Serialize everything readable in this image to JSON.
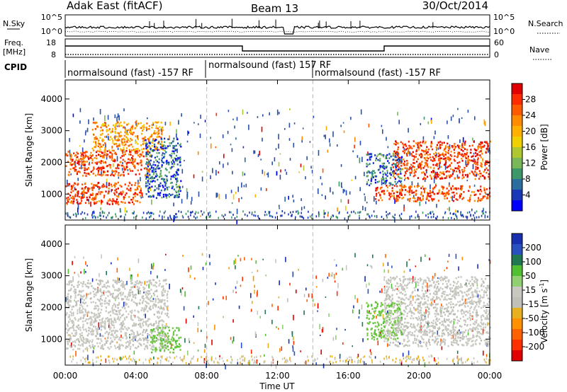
{
  "header": {
    "station": "Adak East (fitACF)",
    "beam": "Beam 13",
    "date": "30/Oct/2014"
  },
  "panels": {
    "nsky": {
      "label": "N.Sky",
      "right_label": "N.Search",
      "ticks": [
        "10^5",
        "10^0"
      ],
      "right_ticks": [
        "10^5",
        "10^0"
      ]
    },
    "freq": {
      "label_top": "Freq.",
      "label_unit": "[MHz]",
      "ticks": [
        "18",
        "8"
      ],
      "right_label": "Nave",
      "right_ticks": [
        "60",
        "0"
      ]
    },
    "cpid": {
      "label": "CPID",
      "segments": [
        {
          "text": "normalsound (fast) -157 RF",
          "start_hour": 0
        },
        {
          "text": "normalsound (fast) 157 RF",
          "start_hour": 8
        },
        {
          "text": "normalsound (fast) -157 RF",
          "start_hour": 14
        }
      ]
    }
  },
  "colorbars": {
    "power": {
      "title": "Power [dB]",
      "ticks": [
        "28",
        "24",
        "20",
        "16",
        "12",
        "8",
        "4"
      ],
      "colors": [
        "#e00000",
        "#ff2a00",
        "#ff5a00",
        "#ff8c00",
        "#ffb000",
        "#f0d000",
        "#b0c830",
        "#78b858",
        "#3c9868",
        "#2a6ea0",
        "#1838b8",
        "#0000ff"
      ]
    },
    "velocity": {
      "title": "Velocity [m s",
      "title_sup": "-1",
      "title_end": "]",
      "ticks": [
        "200",
        "100",
        "50",
        "15",
        "-15",
        "-50",
        "-100",
        "-200"
      ],
      "colors": [
        "#1830b0",
        "#2850c0",
        "#207850",
        "#50c030",
        "#90d070",
        "#c8c8c0",
        "#c0c0b8",
        "#e8b020",
        "#ff9000",
        "#ff6000",
        "#ff3000",
        "#e00000"
      ]
    }
  },
  "chart_data": [
    {
      "type": "heatmap",
      "name": "Power",
      "ylabel": "Slant Range [km]",
      "yticks": [
        1000,
        2000,
        3000,
        4000
      ],
      "xticks": [
        "00:00",
        "04:00",
        "08:00",
        "12:00",
        "16:00",
        "20:00",
        "00:00"
      ],
      "xlim_hours": [
        0,
        24
      ],
      "ylim_km": [
        180,
        4600
      ],
      "regions": [
        {
          "hour_start": 0.0,
          "hour_end": 4.3,
          "range_km": [
            700,
            1400
          ],
          "level": "high"
        },
        {
          "hour_start": 0.0,
          "hour_end": 4.8,
          "range_km": [
            1600,
            2400
          ],
          "level": "high"
        },
        {
          "hour_start": 1.5,
          "hour_end": 5.5,
          "range_km": [
            2400,
            3300
          ],
          "level": "mid"
        },
        {
          "hour_start": 4.5,
          "hour_end": 6.5,
          "range_km": [
            900,
            2800
          ],
          "level": "low"
        },
        {
          "hour_start": 17.5,
          "hour_end": 24.0,
          "range_km": [
            800,
            1300
          ],
          "level": "high"
        },
        {
          "hour_start": 18.5,
          "hour_end": 24.0,
          "range_km": [
            1500,
            2700
          ],
          "level": "high"
        },
        {
          "hour_start": 17.0,
          "hour_end": 19.0,
          "range_km": [
            1300,
            2300
          ],
          "level": "low"
        }
      ]
    },
    {
      "type": "heatmap",
      "name": "Velocity",
      "ylabel": "Slant Range [km]",
      "yticks": [
        1000,
        2000,
        3000,
        4000
      ],
      "xticks": [
        "00:00",
        "04:00",
        "08:00",
        "12:00",
        "16:00",
        "20:00",
        "00:00"
      ],
      "xlabel": "Time UT",
      "xlim_hours": [
        0,
        24
      ],
      "ylim_km": [
        180,
        4600
      ],
      "regions": [
        {
          "hour_start": 0.0,
          "hour_end": 5.8,
          "range_km": [
            700,
            2900
          ],
          "level": "ground"
        },
        {
          "hour_start": 4.8,
          "hour_end": 6.5,
          "range_km": [
            600,
            1400
          ],
          "level": "slow"
        },
        {
          "hour_start": 17.0,
          "hour_end": 19.0,
          "range_km": [
            1000,
            2200
          ],
          "level": "slow"
        },
        {
          "hour_start": 18.0,
          "hour_end": 24.0,
          "range_km": [
            800,
            3000
          ],
          "level": "ground"
        }
      ]
    }
  ]
}
